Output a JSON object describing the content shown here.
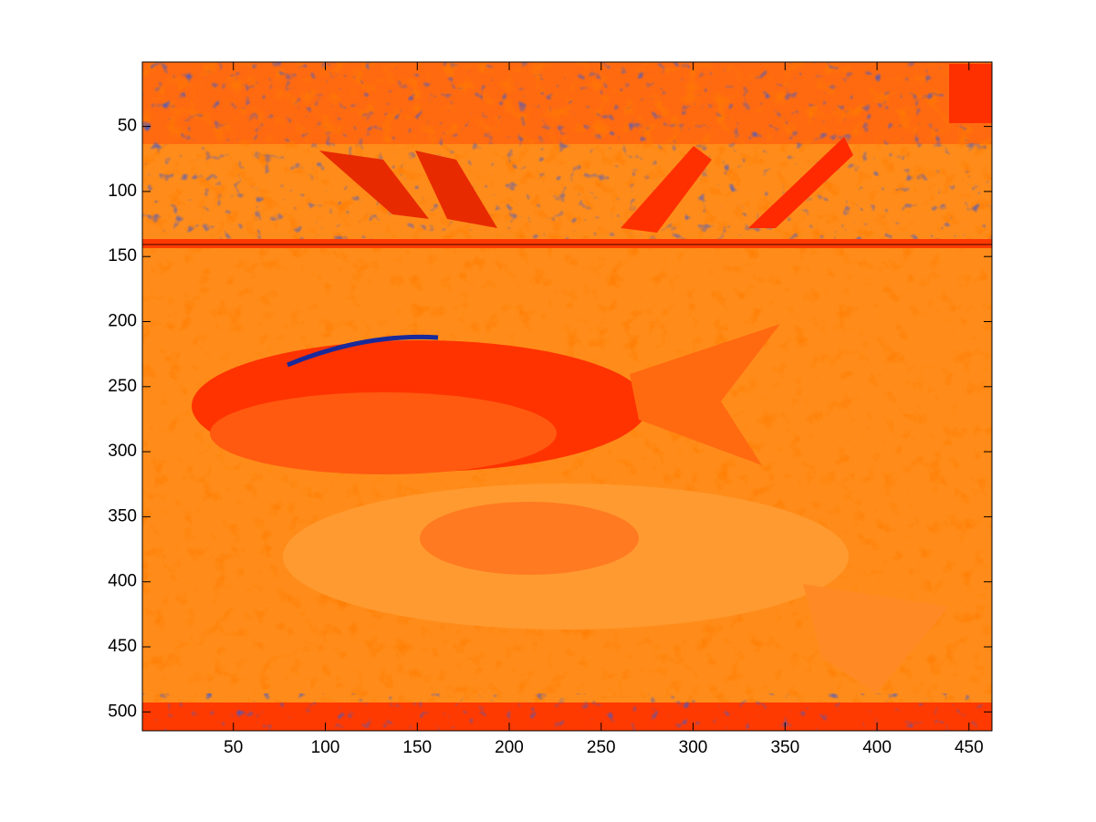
{
  "chart_data": {
    "type": "image",
    "xlim": [
      0.5,
      462.5
    ],
    "ylim": [
      0.5,
      514.5
    ],
    "y_reversed": true,
    "xticks": [
      50,
      100,
      150,
      200,
      250,
      300,
      350,
      400,
      450
    ],
    "yticks": [
      50,
      100,
      150,
      200,
      250,
      300,
      350,
      400,
      450,
      500
    ]
  }
}
